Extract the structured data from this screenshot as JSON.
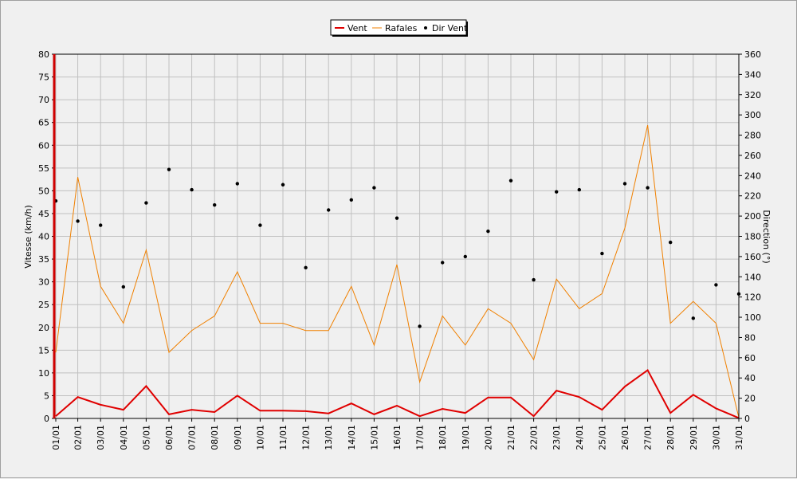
{
  "chart_data": {
    "type": "line",
    "categories": [
      "01/01",
      "02/01",
      "03/01",
      "04/01",
      "05/01",
      "06/01",
      "07/01",
      "08/01",
      "09/01",
      "10/01",
      "11/01",
      "12/01",
      "13/01",
      "14/01",
      "15/01",
      "16/01",
      "17/01",
      "18/01",
      "19/01",
      "20/01",
      "21/01",
      "22/01",
      "23/01",
      "24/01",
      "25/01",
      "26/01",
      "27/01",
      "28/01",
      "29/01",
      "30/01",
      "31/01"
    ],
    "series": [
      {
        "name": "Vent",
        "axis": "left",
        "style": "line",
        "color": "#e00000",
        "values": [
          0.5,
          4.7,
          3.0,
          1.9,
          7.1,
          0.9,
          1.9,
          1.4,
          5.0,
          1.7,
          1.7,
          1.6,
          1.1,
          3.3,
          0.9,
          2.8,
          0.5,
          2.1,
          1.2,
          4.6,
          4.6,
          0.5,
          6.1,
          4.7,
          1.9,
          7.0,
          10.6,
          1.2,
          5.2,
          2.2,
          0.1
        ]
      },
      {
        "name": "Rafales",
        "axis": "left",
        "style": "line",
        "color": "#f08000",
        "values": [
          14.5,
          53.0,
          29.0,
          20.9,
          37.0,
          14.5,
          19.3,
          22.5,
          32.2,
          20.9,
          20.9,
          19.3,
          19.3,
          29.0,
          16.1,
          33.8,
          8.0,
          22.5,
          16.1,
          24.1,
          20.9,
          12.9,
          30.6,
          24.1,
          27.4,
          41.8,
          64.4,
          20.9,
          25.7,
          20.9,
          0.2
        ]
      },
      {
        "name": "Dir Vent",
        "axis": "right",
        "style": "scatter",
        "color": "#000000",
        "values": [
          215,
          195,
          191,
          130,
          213,
          246,
          226,
          211,
          232,
          191,
          231,
          149,
          206,
          216,
          228,
          198,
          91,
          154,
          160,
          185,
          235,
          137,
          224,
          226,
          163,
          232,
          228,
          174,
          99,
          132,
          123
        ]
      }
    ],
    "ylabel": "Vitesse (km/h)",
    "ylim": [
      0,
      80
    ],
    "yticks": [
      0,
      5,
      10,
      15,
      20,
      25,
      30,
      35,
      40,
      45,
      50,
      55,
      60,
      65,
      70,
      75,
      80
    ],
    "y2label": "Direction (°)",
    "y2lim": [
      0,
      360
    ],
    "y2ticks": [
      0,
      20,
      40,
      60,
      80,
      100,
      120,
      140,
      160,
      180,
      200,
      220,
      240,
      260,
      280,
      300,
      320,
      340,
      360
    ],
    "grid": true,
    "legend": "top-center",
    "colors": {
      "background": "#f0f0f0",
      "grid": "#c0c0c0",
      "frame": "#000000"
    }
  }
}
